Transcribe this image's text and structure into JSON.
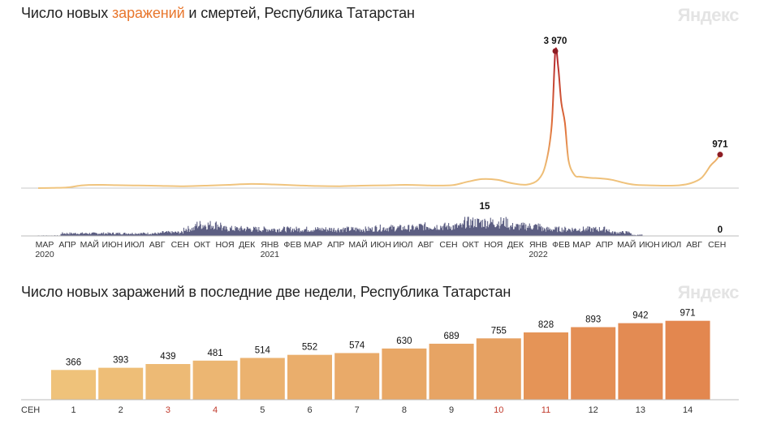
{
  "logo": "Яндекс",
  "chart1": {
    "title_part1": "Число новых ",
    "title_accent": "заражений",
    "title_part2": " и ",
    "title_bold": "смертей",
    "title_part3": ", Республика Татарстан"
  },
  "chart2": {
    "title": "Число новых заражений в последние две недели, Республика Татарстан"
  },
  "chart_data": [
    {
      "type": "line",
      "title": "Число новых заражений и смертей, Республика Татарстан",
      "series": [
        {
          "name": "заражений",
          "x": [
            "2020-03-01",
            "2020-03-20",
            "2020-04-10",
            "2020-04-30",
            "2020-05-20",
            "2020-06-15",
            "2020-07-15",
            "2020-08-15",
            "2020-09-15",
            "2020-10-15",
            "2020-11-15",
            "2020-12-15",
            "2021-01-15",
            "2021-02-15",
            "2021-03-15",
            "2021-04-15",
            "2021-05-15",
            "2021-06-15",
            "2021-07-15",
            "2021-08-15",
            "2021-09-15",
            "2021-10-05",
            "2021-10-25",
            "2021-11-15",
            "2021-12-05",
            "2021-12-25",
            "2022-01-10",
            "2022-01-20",
            "2022-01-28",
            "2022-02-02",
            "2022-02-06",
            "2022-02-10",
            "2022-02-15",
            "2022-02-20",
            "2022-02-28",
            "2022-03-08",
            "2022-03-20",
            "2022-04-05",
            "2022-04-20",
            "2022-05-05",
            "2022-05-20",
            "2022-06-10",
            "2022-07-01",
            "2022-07-20",
            "2022-08-05",
            "2022-08-20",
            "2022-09-01",
            "2022-09-08",
            "2022-09-14"
          ],
          "values": [
            0,
            5,
            20,
            80,
            95,
            85,
            75,
            65,
            55,
            70,
            95,
            120,
            105,
            80,
            60,
            55,
            70,
            80,
            95,
            75,
            85,
            180,
            260,
            240,
            140,
            100,
            250,
            700,
            1800,
            3970,
            3500,
            2500,
            1900,
            800,
            380,
            330,
            300,
            280,
            240,
            160,
            100,
            80,
            70,
            80,
            140,
            300,
            650,
            800,
            971
          ],
          "peak_label": "3 970",
          "last_label": "971"
        },
        {
          "name": "смертей",
          "values_note": "daily deaths",
          "peak_label": "15",
          "last_label": "0"
        }
      ],
      "x_ticks": [
        "МАР",
        "АПР",
        "МАЙ",
        "ИЮН",
        "ИЮЛ",
        "АВГ",
        "СЕН",
        "ОКТ",
        "НОЯ",
        "ДЕК",
        "ЯНВ",
        "ФЕВ",
        "МАР",
        "АПР",
        "МАЙ",
        "ИЮН",
        "ИЮЛ",
        "АВГ",
        "СЕН",
        "ОКТ",
        "НОЯ",
        "ДЕК",
        "ЯНВ",
        "ФЕВ",
        "МАР",
        "АПР",
        "МАЙ",
        "ИЮН",
        "ИЮЛ",
        "АВГ",
        "СЕН"
      ],
      "year_labels": [
        "2020",
        "2021",
        "2022"
      ]
    },
    {
      "type": "bar",
      "title": "Число новых заражений в последние две недели, Республика Татарстан",
      "month_label": "СЕН",
      "categories": [
        "1",
        "2",
        "3",
        "4",
        "5",
        "6",
        "7",
        "8",
        "9",
        "10",
        "11",
        "12",
        "13",
        "14"
      ],
      "values": [
        366,
        393,
        439,
        481,
        514,
        552,
        574,
        630,
        689,
        755,
        828,
        893,
        942,
        971
      ],
      "weekend_days": [
        "3",
        "4",
        "10",
        "11"
      ],
      "ylim": [
        0,
        1100
      ]
    }
  ]
}
